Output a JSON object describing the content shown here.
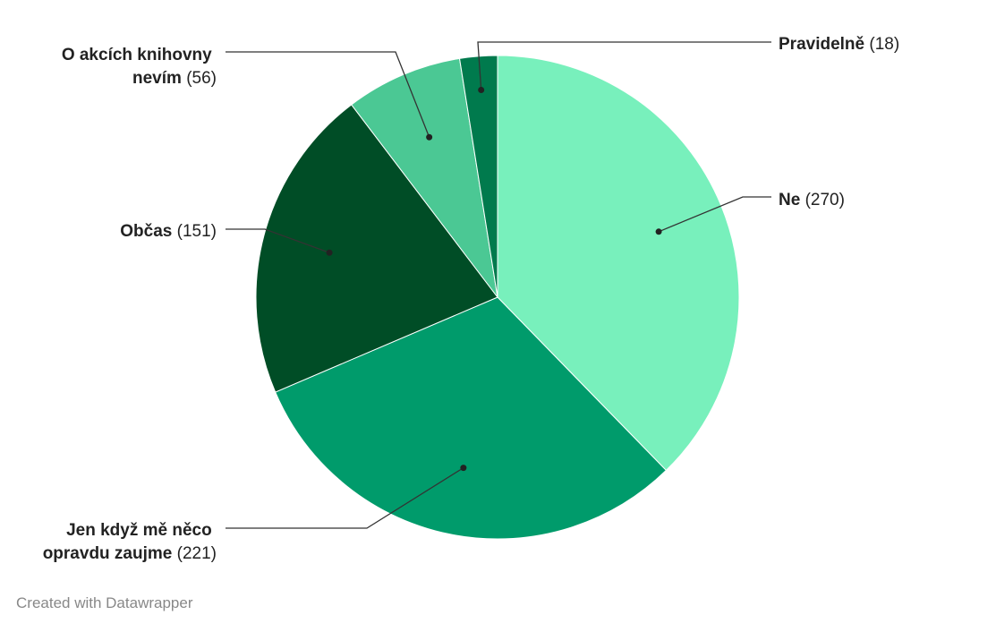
{
  "chart_data": {
    "type": "pie",
    "title": "",
    "slices": [
      {
        "label_lines": [
          "",
          "Ne"
        ],
        "value": 270,
        "value_text": "(270)",
        "color": "#78f0bc"
      },
      {
        "label_lines": [
          "Jen když mě něco",
          "opravdu zaujme"
        ],
        "value": 221,
        "value_text": "(221)",
        "color": "#009b6b"
      },
      {
        "label_lines": [
          "",
          "Občas"
        ],
        "value": 151,
        "value_text": "(151)",
        "color": "#004d26"
      },
      {
        "label_lines": [
          "O akcích knihovny",
          "nevím"
        ],
        "value": 56,
        "value_text": "(56)",
        "color": "#4bc894"
      },
      {
        "label_lines": [
          "",
          "Pravidelně"
        ],
        "value": 18,
        "value_text": "(18)",
        "color": "#007a4d"
      }
    ]
  },
  "footer": {
    "credit": "Created with Datawrapper"
  }
}
